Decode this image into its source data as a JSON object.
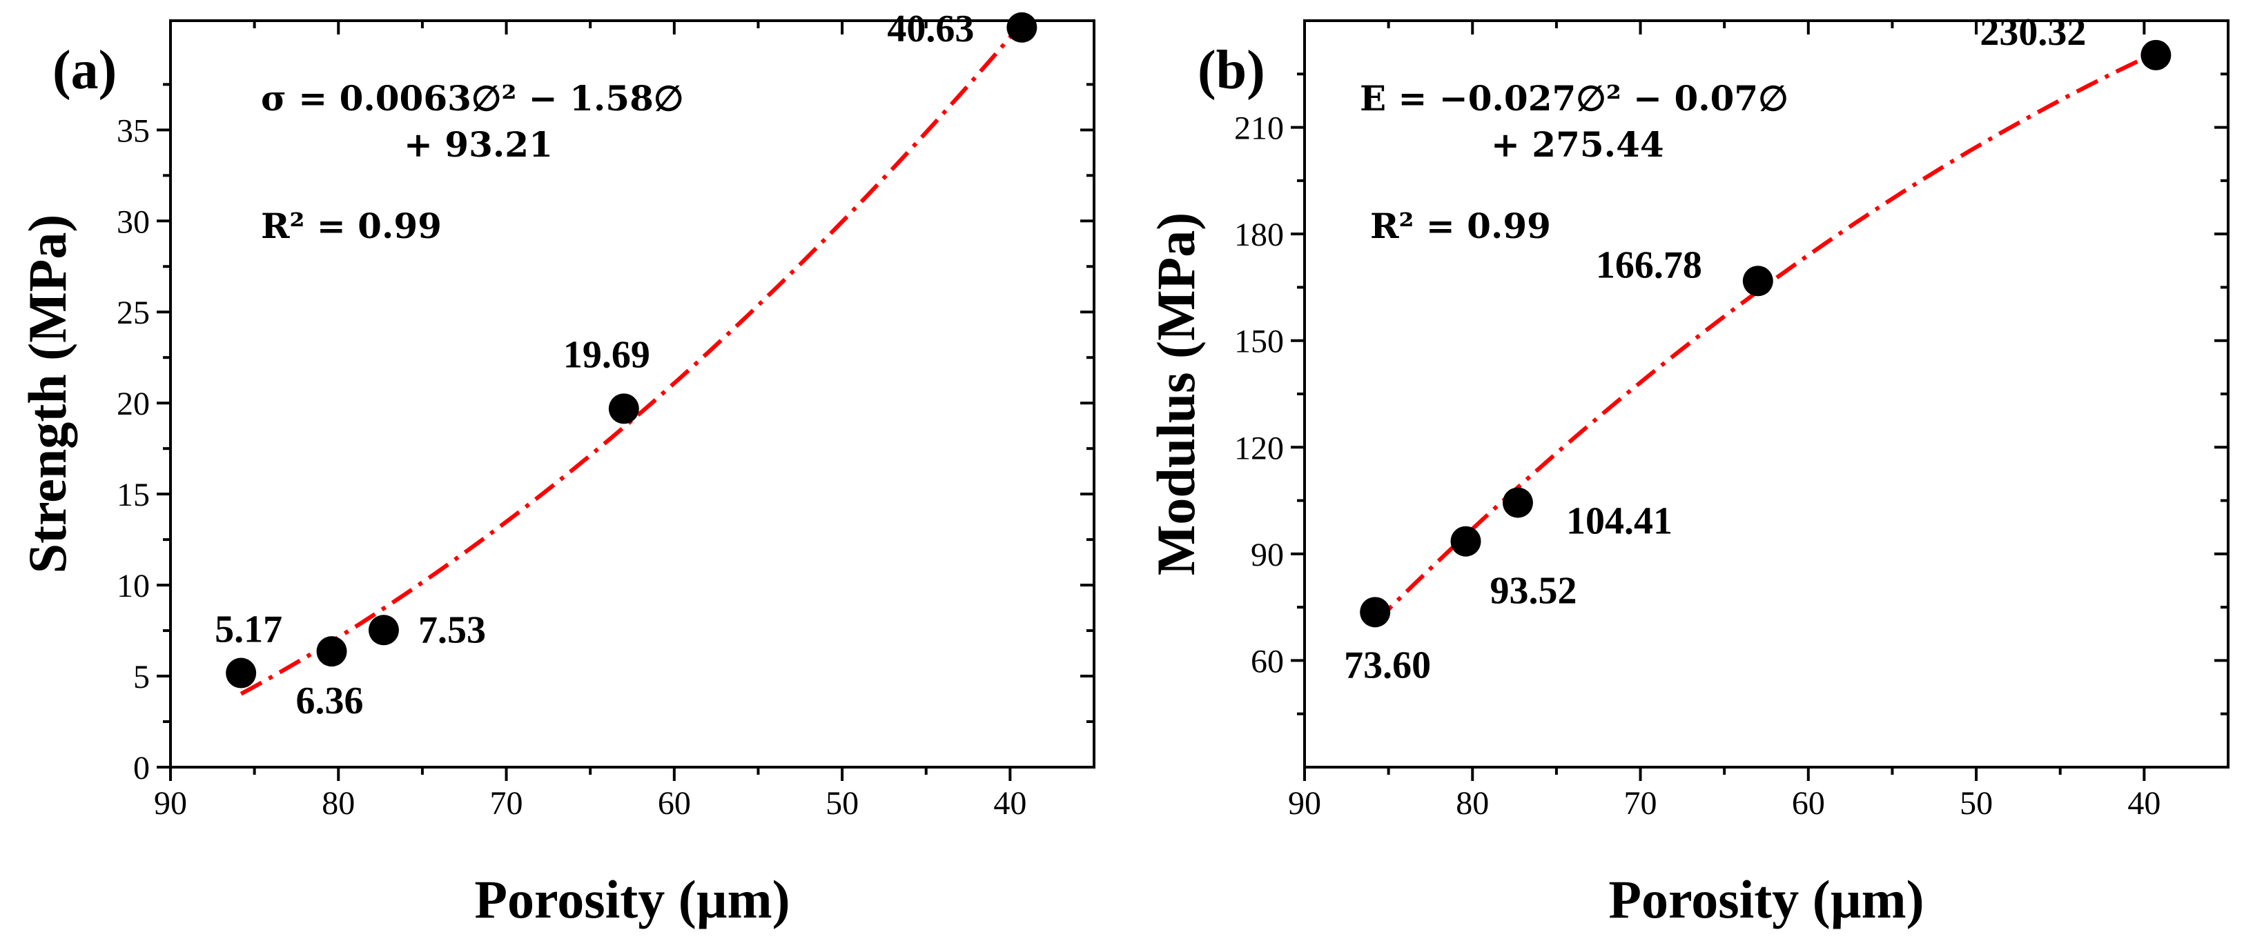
{
  "chart_data": [
    {
      "type": "scatter",
      "panel_label": "(a)",
      "xlabel": "Porosity (µm)",
      "ylabel": "Strength (MPa)",
      "xlim": [
        90,
        35
      ],
      "ylim": [
        0,
        41
      ],
      "x_ticks": [
        90,
        80,
        70,
        60,
        50,
        40
      ],
      "y_ticks": [
        0,
        5,
        10,
        15,
        20,
        25,
        30,
        35
      ],
      "series": [
        {
          "name": "Strength",
          "x": [
            85.8,
            80.4,
            77.3,
            63.0,
            39.3
          ],
          "y": [
            5.17,
            6.36,
            7.53,
            19.69,
            40.63
          ],
          "labels": [
            "5.17",
            "6.36",
            "7.53",
            "19.69",
            "40.63"
          ]
        }
      ],
      "fit": {
        "a": 0.0063,
        "b": -1.58,
        "c": 93.21,
        "x_from": 85.8,
        "x_to": 39.3,
        "style": "red dash-dot"
      },
      "equation_line1": "σ = 0.0063∅² − 1.58∅",
      "equation_line2": "+ 93.21",
      "r2_text": "R² = 0.99"
    },
    {
      "type": "scatter",
      "panel_label": "(b)",
      "xlabel": "Porosity (µm)",
      "ylabel": "Modulus (MPa)",
      "xlim": [
        90,
        35
      ],
      "ylim": [
        30,
        240
      ],
      "x_ticks": [
        90,
        80,
        70,
        60,
        50,
        40
      ],
      "y_ticks": [
        60,
        90,
        120,
        150,
        180,
        210
      ],
      "series": [
        {
          "name": "Modulus",
          "x": [
            85.8,
            80.4,
            77.3,
            63.0,
            39.3
          ],
          "y": [
            73.6,
            93.52,
            104.41,
            166.78,
            230.32
          ],
          "labels": [
            "73.60",
            "93.52",
            "104.41",
            "166.78",
            "230.32"
          ]
        }
      ],
      "fit": {
        "a": -0.027,
        "b": -0.07,
        "c": 275.44,
        "x_from": 85.8,
        "x_to": 39.3,
        "style": "red dash-dot"
      },
      "equation_line1": "E = −0.027∅² − 0.07∅",
      "equation_line2": "+ 275.44",
      "r2_text": "R² = 0.99"
    }
  ]
}
